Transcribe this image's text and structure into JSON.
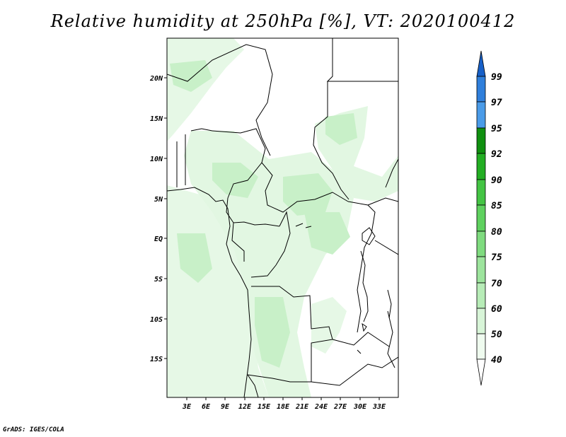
{
  "title": "Relative humidity at 250hPa [%], VT: 2020100412",
  "footer": "GrADS: IGES/COLA",
  "map": {
    "lon_range": [
      0,
      36
    ],
    "lat_range": [
      -20,
      25
    ],
    "y_ticks": [
      "20N",
      "15N",
      "10N",
      "5N",
      "EQ",
      "5S",
      "10S",
      "15S"
    ],
    "x_ticks": [
      "3E",
      "6E",
      "9E",
      "12E",
      "15E",
      "18E",
      "21E",
      "24E",
      "27E",
      "30E",
      "33E"
    ]
  },
  "colorbar": {
    "labels": [
      "99",
      "97",
      "95",
      "92",
      "90",
      "85",
      "80",
      "75",
      "70",
      "60",
      "50",
      "40"
    ],
    "colors": {
      "40-50": "#effbef",
      "50-60": "#d8f5d8",
      "60-70": "#b7ecb7",
      "70-75": "#9de49d",
      "75-80": "#7fdb7f",
      "80-85": "#5fd15f",
      "85-90": "#44c444",
      "90-92": "#23ae23",
      "92-95": "#109010",
      "95-97": "#4a9be8",
      "97-99": "#2f7fdb",
      "above-99": "#1760c8",
      "below-40": "#ffffff"
    }
  }
}
